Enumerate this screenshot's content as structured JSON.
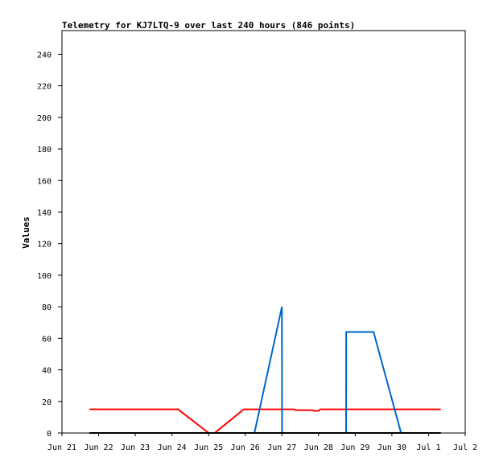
{
  "chart_data": {
    "type": "line",
    "title": "Telemetry for KJ7LTQ-9 over last 240 hours (846 points)",
    "xlabel": "",
    "ylabel": "Values",
    "x_axis_type": "date",
    "xlim": [
      "2023-06-21",
      "2023-07-02"
    ],
    "ylim": [
      0,
      255
    ],
    "x_ticks": [
      {
        "x": "2023-06-21",
        "label": "Jun 21"
      },
      {
        "x": "2023-06-22",
        "label": "Jun 22"
      },
      {
        "x": "2023-06-23",
        "label": "Jun 23"
      },
      {
        "x": "2023-06-24",
        "label": "Jun 24"
      },
      {
        "x": "2023-06-25",
        "label": "Jun 25"
      },
      {
        "x": "2023-06-26",
        "label": "Jun 26"
      },
      {
        "x": "2023-06-27",
        "label": "Jun 27"
      },
      {
        "x": "2023-06-28",
        "label": "Jun 28"
      },
      {
        "x": "2023-06-29",
        "label": "Jun 29"
      },
      {
        "x": "2023-06-30",
        "label": "Jun 30"
      },
      {
        "x": "2023-07-01",
        "label": "Jul 1"
      },
      {
        "x": "2023-07-02",
        "label": "Jul 2"
      }
    ],
    "y_ticks": [
      0,
      20,
      40,
      60,
      80,
      100,
      120,
      140,
      160,
      180,
      200,
      220,
      240
    ],
    "grid": false,
    "legend": "none",
    "series": [
      {
        "color": "#ff0000",
        "points": [
          [
            "2023-06-21T18:00",
            15
          ],
          [
            "2023-06-24T04:00",
            15
          ],
          [
            "2023-06-25T00:00",
            0
          ],
          [
            "2023-06-25T04:00",
            0
          ],
          [
            "2023-06-25T23:00",
            15
          ],
          [
            "2023-06-27T08:00",
            15
          ],
          [
            "2023-06-27T09:00",
            14.5
          ],
          [
            "2023-06-27T20:00",
            14.5
          ],
          [
            "2023-06-27T21:00",
            14
          ],
          [
            "2023-06-28T00:00",
            14
          ],
          [
            "2023-06-28T01:00",
            15
          ],
          [
            "2023-07-01T08:00",
            15
          ]
        ]
      },
      {
        "color": "#0066cc",
        "points": [
          [
            "2023-06-26T06:00",
            0
          ],
          [
            "2023-06-27T00:00",
            80
          ],
          [
            "2023-06-27T00:05",
            0
          ],
          [
            "2023-06-28T18:00",
            0
          ],
          [
            "2023-06-28T18:05",
            64
          ],
          [
            "2023-06-29T12:00",
            64
          ],
          [
            "2023-06-30T06:00",
            0
          ]
        ]
      },
      {
        "color": "#000000",
        "points": [
          [
            "2023-06-21T18:00",
            0
          ],
          [
            "2023-07-01T08:00",
            0
          ]
        ]
      }
    ]
  }
}
